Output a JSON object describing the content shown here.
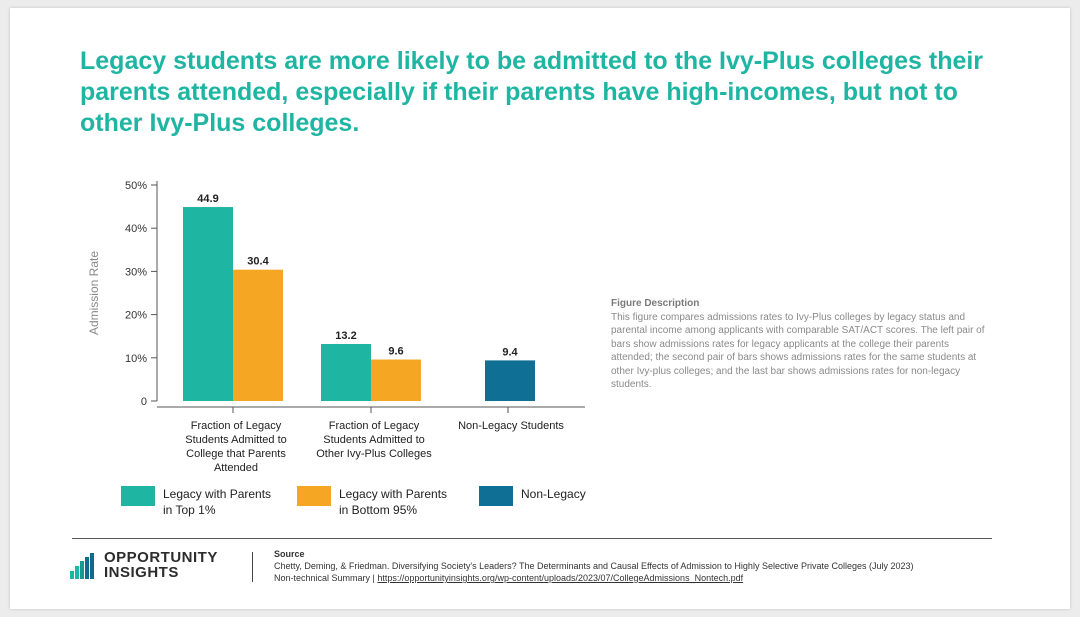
{
  "title": "Legacy students are more likely to be admitted to the Ivy-Plus colleges their parents attended, especially if their parents have high-incomes, but not to other Ivy-Plus colleges.",
  "colors": {
    "title": "#1fb5a3",
    "top1": "#1fb5a3",
    "bottom95": "#f5a623",
    "nonlegacy": "#0f6f94"
  },
  "chart_data": {
    "type": "bar",
    "ylabel": "Admission Rate",
    "ylim": [
      0,
      50
    ],
    "yticks": [
      "0",
      "10%",
      "20%",
      "30%",
      "40%",
      "50%"
    ],
    "categories": [
      [
        "Fraction of Legacy",
        "Students Admitted to",
        "College that Parents",
        "Attended"
      ],
      [
        "Fraction of Legacy",
        "Students Admitted to",
        "Other Ivy-Plus Colleges"
      ],
      [
        "Non-Legacy Students"
      ]
    ],
    "series": [
      {
        "name": "Legacy with Parents in Top 1%",
        "values": [
          44.9,
          13.2,
          null
        ]
      },
      {
        "name": "Legacy with Parents in Bottom 95%",
        "values": [
          30.4,
          9.6,
          null
        ]
      },
      {
        "name": "Non-Legacy",
        "values": [
          null,
          null,
          9.4
        ]
      }
    ],
    "data_labels": [
      "44.9",
      "30.4",
      "13.2",
      "9.6",
      "9.4"
    ]
  },
  "legend": [
    {
      "label": "Legacy with Parents in Top 1%"
    },
    {
      "label": "Legacy with Parents in Bottom 95%"
    },
    {
      "label": "Non-Legacy"
    }
  ],
  "description": {
    "heading": "Figure Description",
    "body": "This figure compares admissions rates to Ivy-Plus colleges by legacy status and parental income among applicants with comparable SAT/ACT scores. The left pair of bars show admissions rates for legacy applicants at the college their parents attended; the second pair of bars shows admissions rates for the same students at other Ivy-plus colleges; and the last bar shows admissions rates for non-legacy students."
  },
  "logo": {
    "line1": "OPPORTUNITY",
    "line2": "INSIGHTS"
  },
  "source": {
    "heading": "Source",
    "citation": "Chetty, Deming, & Friedman. Diversifying Society's Leaders? The Determinants and Causal Effects of Admission to Highly Selective Private Colleges (July 2023)",
    "summary_prefix": "Non-technical Summary | ",
    "url": "https://opportunityinsights.org/wp-content/uploads/2023/07/CollegeAdmissions_Nontech.pdf"
  }
}
